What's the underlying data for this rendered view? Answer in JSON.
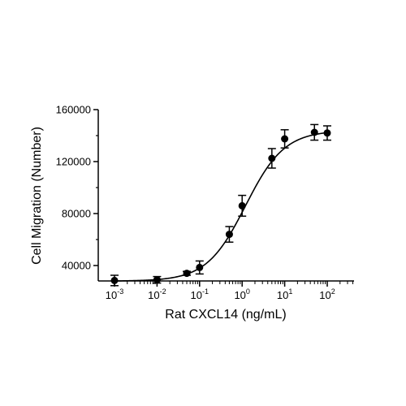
{
  "chart_data": {
    "type": "scatter",
    "xlabel": "Rat CXCL14 (ng/mL)",
    "ylabel": "Cell Migration (Number)",
    "x_scale": "log10",
    "xlim": [
      0.001,
      100
    ],
    "ylim": [
      20000,
      160000
    ],
    "y_ticks": [
      40000,
      80000,
      120000,
      160000
    ],
    "y_tick_labels": [
      "40000",
      "80000",
      "120000",
      "160000"
    ],
    "x_ticks": [
      0.001,
      0.01,
      0.1,
      1,
      10,
      100
    ],
    "x_tick_labels": [
      {
        "base": "10",
        "exp": "-3"
      },
      {
        "base": "10",
        "exp": "-2"
      },
      {
        "base": "10",
        "exp": "-1"
      },
      {
        "base": "10",
        "exp": "0"
      },
      {
        "base": "10",
        "exp": "1"
      },
      {
        "base": "10",
        "exp": "2"
      }
    ],
    "grid": false,
    "legend": "none",
    "points": [
      {
        "x": 0.001,
        "y": 28500,
        "err": 4000
      },
      {
        "x": 0.01,
        "y": 29000,
        "err": 2500
      },
      {
        "x": 0.05,
        "y": 34000,
        "err": 1500
      },
      {
        "x": 0.1,
        "y": 38500,
        "err": 5000
      },
      {
        "x": 0.5,
        "y": 64000,
        "err": 6000
      },
      {
        "x": 1,
        "y": 86000,
        "err": 8000
      },
      {
        "x": 5,
        "y": 122500,
        "err": 7500
      },
      {
        "x": 10,
        "y": 137500,
        "err": 7000
      },
      {
        "x": 50,
        "y": 142500,
        "err": 6000
      },
      {
        "x": 100,
        "y": 142000,
        "err": 5500
      }
    ],
    "fit_curve": {
      "model": "4PL",
      "bottom": 28000,
      "top": 144000,
      "ec50": 1.2,
      "hill": 0.95
    },
    "color": "#000000"
  }
}
